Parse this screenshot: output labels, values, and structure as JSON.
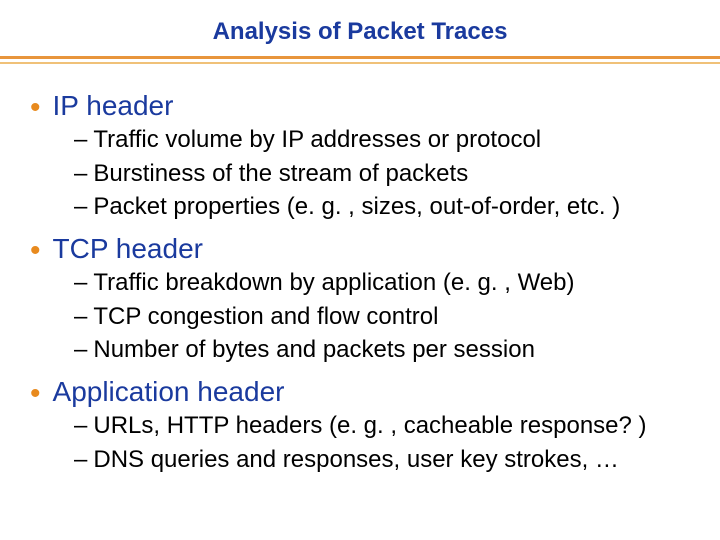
{
  "title": "Analysis of Packet Traces",
  "colors": {
    "title_color": "#1a3a9e",
    "bullet_heading_color": "#1a3a9e",
    "bullet_dot_color": "#e88a1e",
    "body_text_color": "#000000",
    "divider_top": "#e8953c",
    "divider_bottom": "#f0c178",
    "background": "#ffffff"
  },
  "typography": {
    "title_fontsize": 24,
    "heading_fontsize": 28,
    "body_fontsize": 24,
    "font_family": "Verdana"
  },
  "bullets": [
    {
      "heading": "IP header",
      "subs": [
        "Traffic volume by IP addresses or protocol",
        "Burstiness of the stream of packets",
        "Packet properties (e. g. , sizes, out-of-order, etc. )"
      ]
    },
    {
      "heading": "TCP header",
      "subs": [
        "Traffic breakdown by application (e. g. , Web)",
        "TCP congestion and flow control",
        "Number of bytes and packets per session"
      ]
    },
    {
      "heading": "Application header",
      "subs": [
        "URLs, HTTP headers (e. g. , cacheable response? )",
        "DNS queries and responses, user key strokes, …"
      ]
    }
  ]
}
